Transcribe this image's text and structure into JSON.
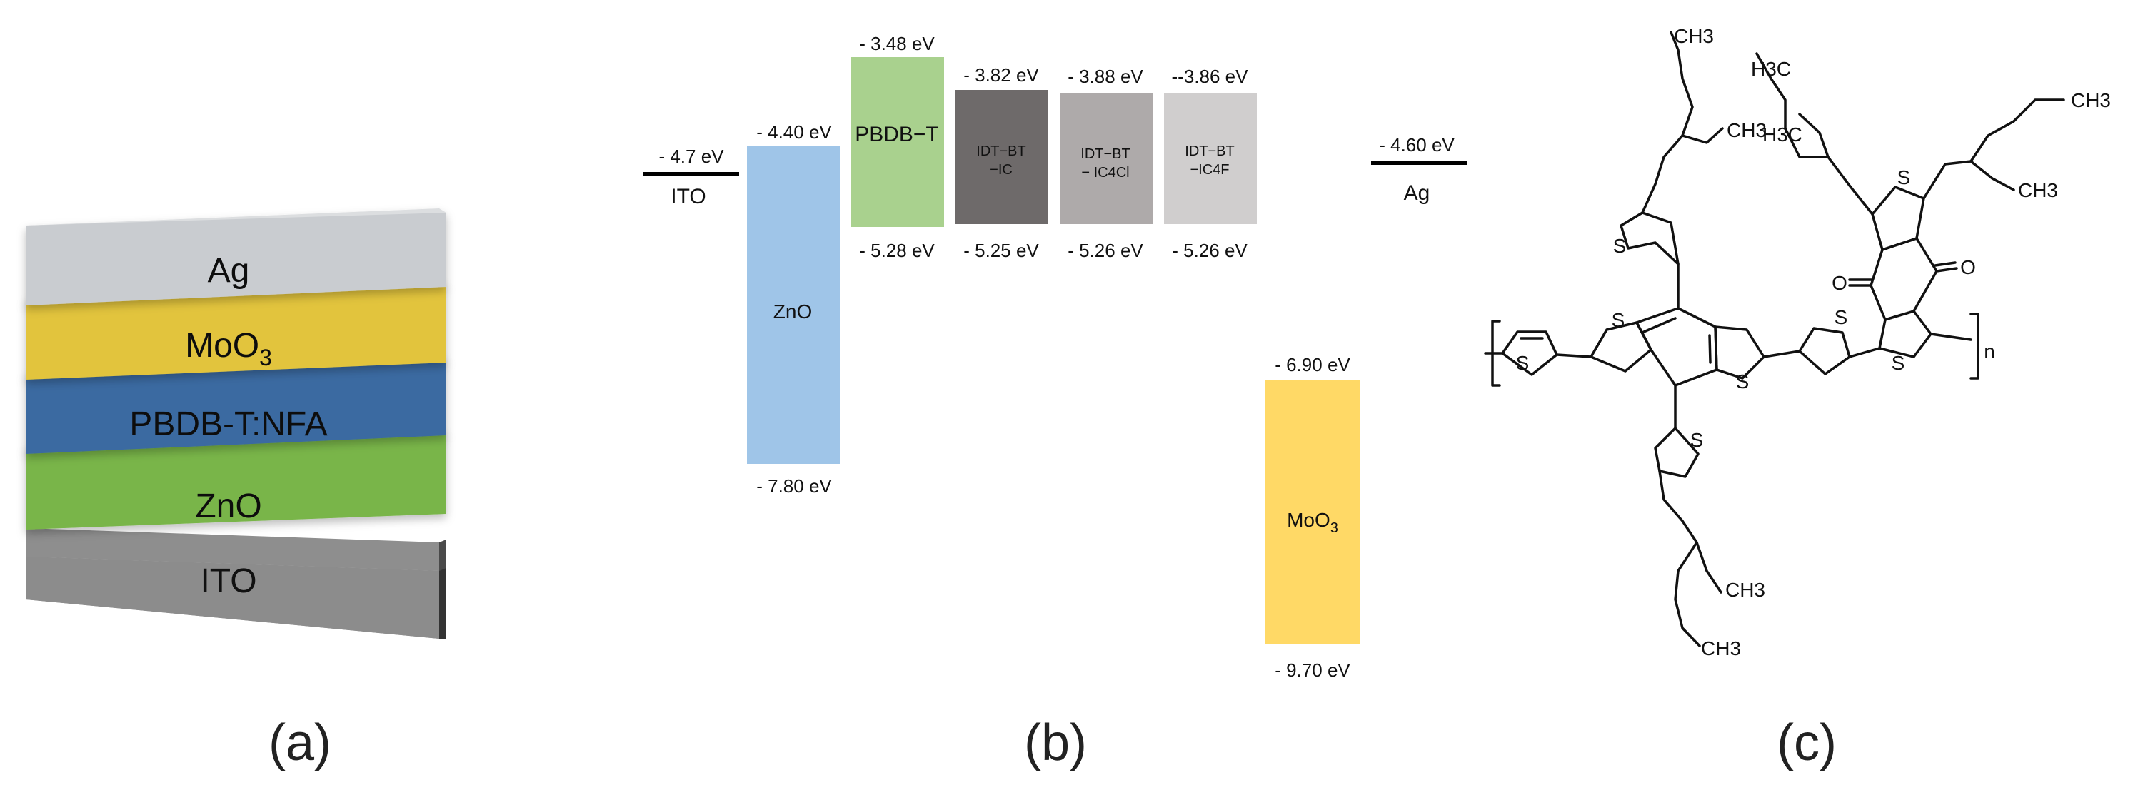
{
  "panel_a": {
    "caption": "(a)",
    "layers": [
      {
        "name": "Ag",
        "color": "#c9ccd0"
      },
      {
        "name": "MoO3",
        "color": "#e2c43e"
      },
      {
        "name": "PBDB-T:NFA",
        "color": "#3b6aa1"
      },
      {
        "name": "ZnO",
        "color": "#79b549"
      },
      {
        "name": "ITO",
        "color": "#8e8e8e"
      }
    ]
  },
  "panel_b": {
    "caption": "(b)",
    "ito": {
      "label": "ITO",
      "level": "- 4.7 eV"
    },
    "ag": {
      "label": "Ag",
      "level": "- 4.60 eV"
    },
    "bars": [
      {
        "name": "ZnO",
        "top": "- 4.40 eV",
        "bottom": "- 7.80 eV",
        "color": "#9fc5e8"
      },
      {
        "name": "PBDB−T",
        "top": "- 3.48 eV",
        "bottom": "- 5.28 eV",
        "color": "#a9d18e"
      },
      {
        "name": "IDT−BT",
        "name2": "−IC",
        "top": "- 3.82 eV",
        "bottom": "- 5.25 eV",
        "color": "#6e6a6a"
      },
      {
        "name": "IDT−BT",
        "name2": "− IC4Cl",
        "top": "- 3.88 eV",
        "bottom": "- 5.26 eV",
        "color": "#aeaaaa"
      },
      {
        "name": "IDT−BT",
        "name2": "−IC4F",
        "top": "--3.86 eV",
        "bottom": "- 5.26 eV",
        "color": "#d0cece"
      },
      {
        "name": "MoO3",
        "top": "- 6.90 eV",
        "bottom": "- 9.70 eV",
        "color": "#ffd966"
      }
    ]
  },
  "panel_c": {
    "caption": "(c)",
    "atoms": {
      "S": "S",
      "O": "O",
      "CH3": "CH3",
      "H3C": "H3C",
      "n": "n"
    }
  }
}
